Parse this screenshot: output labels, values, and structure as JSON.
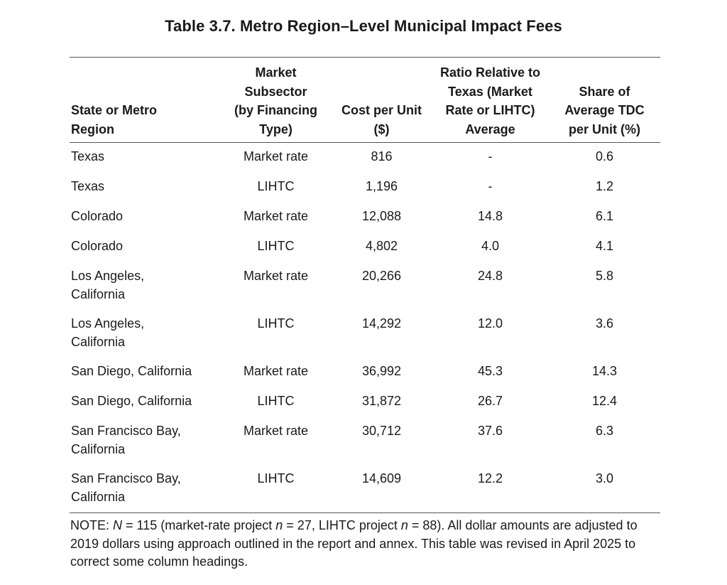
{
  "title": "Table 3.7. Metro Region–Level Municipal Impact Fees",
  "columns": [
    "State or Metro Region",
    "Market Subsector (by Financing Type)",
    "Cost per Unit ($)",
    "Ratio Relative to Texas (Market Rate or LIHTC) Average",
    "Share of Average TDC per Unit (%)"
  ],
  "header_lines": [
    [
      "State or Metro",
      "Region"
    ],
    [
      "Market",
      "Subsector",
      "(by Financing",
      "Type)"
    ],
    [
      "Cost per Unit",
      "($)"
    ],
    [
      "Ratio Relative to",
      "Texas (Market",
      "Rate or LIHTC)",
      "Average"
    ],
    [
      "Share of",
      "Average TDC",
      "per Unit (%)"
    ]
  ],
  "rows": [
    {
      "region_lines": [
        "Texas"
      ],
      "subsector": "Market rate",
      "cost": "816",
      "ratio": "-",
      "share": "0.6"
    },
    {
      "region_lines": [
        "Texas"
      ],
      "subsector": "LIHTC",
      "cost": "1,196",
      "ratio": "-",
      "share": "1.2"
    },
    {
      "region_lines": [
        "Colorado"
      ],
      "subsector": "Market rate",
      "cost": "12,088",
      "ratio": "14.8",
      "share": "6.1"
    },
    {
      "region_lines": [
        "Colorado"
      ],
      "subsector": "LIHTC",
      "cost": "4,802",
      "ratio": "4.0",
      "share": "4.1"
    },
    {
      "region_lines": [
        "Los Angeles,",
        "California"
      ],
      "subsector": "Market rate",
      "cost": "20,266",
      "ratio": "24.8",
      "share": "5.8"
    },
    {
      "region_lines": [
        "Los Angeles,",
        "California"
      ],
      "subsector": "LIHTC",
      "cost": "14,292",
      "ratio": "12.0",
      "share": "3.6"
    },
    {
      "region_lines": [
        "San Diego, California"
      ],
      "subsector": "Market rate",
      "cost": "36,992",
      "ratio": "45.3",
      "share": "14.3"
    },
    {
      "region_lines": [
        "San Diego, California"
      ],
      "subsector": "LIHTC",
      "cost": "31,872",
      "ratio": "26.7",
      "share": "12.4"
    },
    {
      "region_lines": [
        "San Francisco Bay,",
        "California"
      ],
      "subsector": "Market rate",
      "cost": "30,712",
      "ratio": "37.6",
      "share": "6.3"
    },
    {
      "region_lines": [
        "San Francisco Bay,",
        "California"
      ],
      "subsector": "LIHTC",
      "cost": "14,609",
      "ratio": "12.2",
      "share": "3.0"
    }
  ],
  "note": {
    "prefix": "NOTE: ",
    "N_symbol": "N",
    "N_text": " = 115 (market-rate project ",
    "n_symbol_1": "n",
    "n_text_1": " = 27, LIHTC project ",
    "n_symbol_2": "n",
    "n_text_2": " = 88). All dollar amounts are adjusted to 2019 dollars using approach outlined in the report and annex. This table was revised in April 2025 to correct some column headings."
  }
}
